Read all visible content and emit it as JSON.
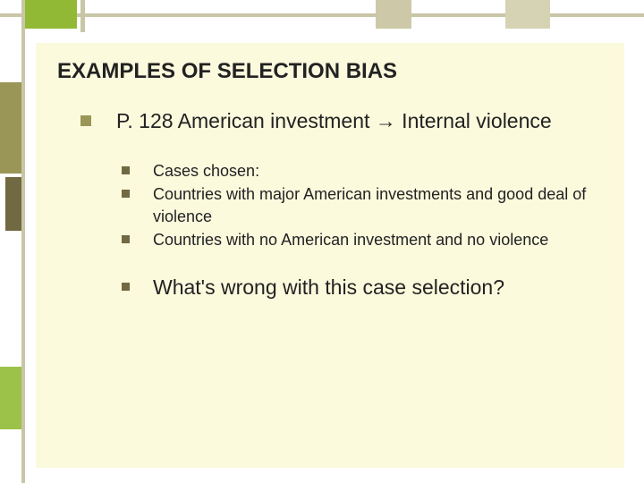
{
  "colors": {
    "slide_bg": "#fcfadd",
    "line": "#c9c6a7",
    "accent_green": "#92b935",
    "accent_olive": "#9a9657",
    "accent_dark": "#706941",
    "accent_ltgreen": "#9cc24a",
    "text": "#222222"
  },
  "title": "EXAMPLES OF SELECTION BIAS",
  "main_point": {
    "prefix": "P. 128 American investment ",
    "arrow": "→",
    "suffix": "  Internal violence"
  },
  "sub_points": [
    "Cases chosen:",
    "Countries with major American investments and good deal of violence",
    "Countries with no American investment and no violence"
  ],
  "question": "What's wrong with this case selection?"
}
